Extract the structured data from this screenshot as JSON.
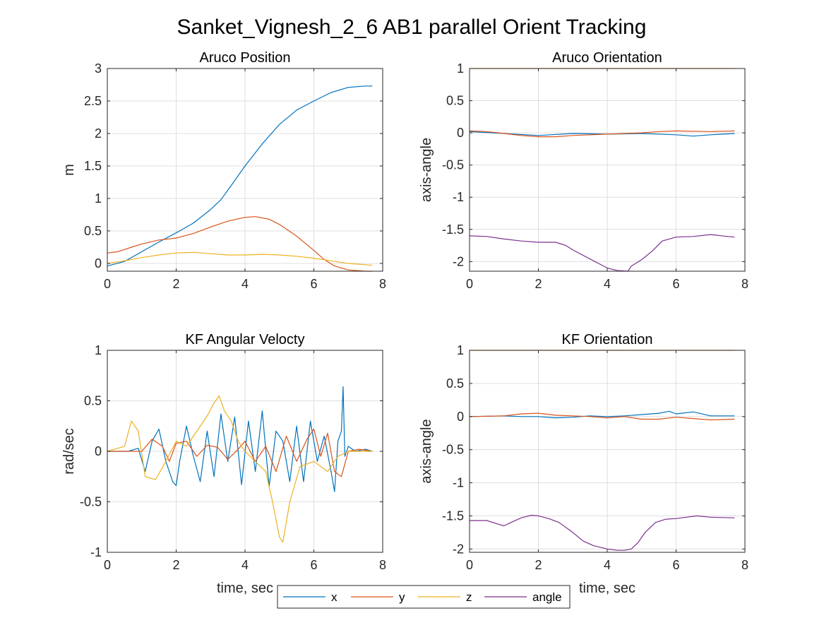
{
  "title": "Sanket_Vignesh_2_6 AB1 parallel Orient Tracking",
  "colors": {
    "x": "#0072bd",
    "y": "#d95319",
    "z": "#edb120",
    "angle": "#7e2f8e"
  },
  "legend": {
    "placement": "bottom-center",
    "entries": [
      "x",
      "y",
      "z",
      "angle"
    ]
  },
  "chart_data": [
    {
      "type": "line",
      "title": "Aruco Position",
      "xlabel": "",
      "ylabel": "m",
      "xlim": [
        0,
        8
      ],
      "ylim": [
        -0.12,
        3
      ],
      "xticks": [
        0,
        2,
        4,
        6,
        8
      ],
      "yticks": [
        0,
        0.5,
        1,
        1.5,
        2,
        2.5,
        3
      ],
      "grid": true,
      "series": [
        {
          "name": "x",
          "color": "#0072bd",
          "x": [
            0,
            0.5,
            1,
            1.5,
            2,
            2.5,
            3,
            3.3,
            3.6,
            4,
            4.5,
            5,
            5.5,
            6,
            6.5,
            7,
            7.5,
            7.7
          ],
          "y": [
            -0.04,
            0.03,
            0.18,
            0.33,
            0.47,
            0.62,
            0.83,
            0.98,
            1.2,
            1.5,
            1.84,
            2.14,
            2.36,
            2.5,
            2.63,
            2.71,
            2.73,
            2.73
          ]
        },
        {
          "name": "y",
          "color": "#d95319",
          "x": [
            0,
            0.3,
            0.7,
            1,
            1.5,
            2,
            2.5,
            3,
            3.5,
            4,
            4.3,
            4.7,
            5,
            5.5,
            6,
            6.3,
            6.6,
            7,
            7.5,
            7.7
          ],
          "y": [
            0.16,
            0.18,
            0.25,
            0.3,
            0.36,
            0.39,
            0.46,
            0.56,
            0.65,
            0.71,
            0.72,
            0.68,
            0.6,
            0.42,
            0.2,
            0.06,
            -0.04,
            -0.1,
            -0.12,
            -0.12
          ]
        },
        {
          "name": "z",
          "color": "#edb120",
          "x": [
            0,
            0.5,
            1,
            1.5,
            2,
            2.5,
            3,
            3.5,
            4,
            4.5,
            5,
            5.5,
            6,
            6.5,
            7,
            7.5,
            7.7
          ],
          "y": [
            0.0,
            0.04,
            0.09,
            0.13,
            0.16,
            0.17,
            0.15,
            0.13,
            0.13,
            0.14,
            0.13,
            0.11,
            0.08,
            0.04,
            0.0,
            -0.02,
            -0.03
          ]
        }
      ]
    },
    {
      "type": "line",
      "title": "Aruco Orientation",
      "xlabel": "",
      "ylabel": "axis-angle",
      "xlim": [
        0,
        8
      ],
      "ylim": [
        -2.15,
        1
      ],
      "xticks": [
        0,
        2,
        4,
        6,
        8
      ],
      "yticks": [
        -2,
        -1.5,
        -1,
        -0.5,
        0,
        0.5,
        1
      ],
      "grid": true,
      "series": [
        {
          "name": "x",
          "color": "#0072bd",
          "x": [
            0,
            1,
            2,
            3,
            4,
            5,
            6,
            6.5,
            7,
            7.7
          ],
          "y": [
            0.02,
            -0.01,
            -0.04,
            -0.01,
            -0.02,
            -0.01,
            -0.03,
            -0.05,
            -0.03,
            -0.01
          ]
        },
        {
          "name": "y",
          "color": "#d95319",
          "x": [
            0,
            0.5,
            1,
            1.5,
            2,
            2.5,
            3,
            4,
            5,
            5.5,
            6,
            7,
            7.7
          ],
          "y": [
            0.03,
            0.02,
            -0.01,
            -0.04,
            -0.06,
            -0.06,
            -0.04,
            -0.02,
            0.0,
            0.02,
            0.03,
            0.02,
            0.03
          ]
        },
        {
          "name": "z",
          "color": "#edb120",
          "x": [
            0,
            7.7
          ],
          "y": [
            1.0,
            1.0
          ]
        },
        {
          "name": "angle",
          "color": "#7e2f8e",
          "x": [
            0,
            0.5,
            1,
            1.5,
            2,
            2.5,
            2.8,
            3,
            3.5,
            4,
            4.3,
            4.6,
            4.7,
            5,
            5.3,
            5.6,
            6,
            6.5,
            7,
            7.5,
            7.7
          ],
          "y": [
            -1.6,
            -1.61,
            -1.65,
            -1.68,
            -1.7,
            -1.7,
            -1.75,
            -1.82,
            -1.96,
            -2.1,
            -2.14,
            -2.15,
            -2.07,
            -1.97,
            -1.84,
            -1.68,
            -1.62,
            -1.61,
            -1.58,
            -1.61,
            -1.62
          ]
        }
      ]
    },
    {
      "type": "line",
      "title": "KF Angular Velocty",
      "xlabel": "time, sec",
      "ylabel": "rad/sec",
      "xlim": [
        0,
        8
      ],
      "ylim": [
        -1,
        1
      ],
      "xticks": [
        0,
        2,
        4,
        6,
        8
      ],
      "yticks": [
        -1,
        -0.5,
        0,
        0.5,
        1
      ],
      "grid": true,
      "series": [
        {
          "name": "x",
          "color": "#0072bd",
          "x": [
            0,
            0.6,
            0.9,
            1.1,
            1.3,
            1.5,
            1.7,
            1.9,
            2.0,
            2.1,
            2.3,
            2.5,
            2.7,
            2.9,
            3.1,
            3.3,
            3.5,
            3.7,
            3.9,
            4.1,
            4.3,
            4.5,
            4.7,
            4.9,
            5.1,
            5.3,
            5.5,
            5.7,
            5.9,
            6.1,
            6.3,
            6.5,
            6.6,
            6.7,
            6.8,
            6.85,
            6.9,
            7.0,
            7.2,
            7.5,
            7.7
          ],
          "y": [
            0.0,
            0.0,
            0.03,
            -0.2,
            0.1,
            0.22,
            -0.1,
            -0.3,
            -0.34,
            -0.1,
            0.25,
            -0.05,
            -0.3,
            0.2,
            -0.25,
            0.37,
            -0.1,
            0.34,
            -0.33,
            0.3,
            -0.2,
            0.4,
            -0.35,
            0.2,
            0.1,
            -0.3,
            0.25,
            -0.3,
            0.3,
            -0.1,
            0.15,
            -0.2,
            -0.4,
            0.1,
            0.2,
            0.64,
            -0.05,
            0.05,
            0.0,
            0.02,
            0.0
          ]
        },
        {
          "name": "y",
          "color": "#d95319",
          "x": [
            0,
            1,
            1.3,
            1.6,
            1.8,
            2.0,
            2.3,
            2.6,
            2.9,
            3.2,
            3.5,
            3.8,
            4.0,
            4.3,
            4.6,
            4.9,
            5.2,
            5.5,
            5.8,
            6.0,
            6.2,
            6.4,
            6.6,
            6.8,
            7.0,
            7.3,
            7.7
          ],
          "y": [
            0.0,
            0.0,
            0.12,
            0.05,
            -0.1,
            0.08,
            0.1,
            -0.05,
            0.06,
            0.04,
            -0.08,
            0.02,
            0.1,
            -0.1,
            0.05,
            -0.2,
            0.15,
            -0.1,
            0.12,
            0.22,
            -0.05,
            0.18,
            -0.2,
            -0.25,
            0.0,
            0.02,
            0.0
          ]
        },
        {
          "name": "z",
          "color": "#edb120",
          "x": [
            0,
            0.5,
            0.7,
            0.9,
            1.1,
            1.4,
            1.7,
            2.0,
            2.3,
            2.6,
            2.9,
            3.1,
            3.25,
            3.4,
            3.6,
            3.8,
            4.0,
            4.3,
            4.6,
            4.8,
            5.0,
            5.1,
            5.3,
            5.6,
            6.0,
            6.4,
            6.7,
            7.0,
            7.7
          ],
          "y": [
            0.0,
            0.05,
            0.3,
            0.2,
            -0.25,
            -0.28,
            -0.1,
            0.1,
            0.05,
            0.2,
            0.35,
            0.48,
            0.55,
            0.4,
            0.3,
            0.1,
            0.0,
            -0.1,
            -0.2,
            -0.5,
            -0.85,
            -0.9,
            -0.5,
            -0.15,
            -0.1,
            -0.2,
            -0.05,
            0.0,
            0.0
          ]
        }
      ]
    },
    {
      "type": "line",
      "title": "KF Orientation",
      "xlabel": "time, sec",
      "ylabel": "axis-angle",
      "xlim": [
        0,
        8
      ],
      "ylim": [
        -2.05,
        1
      ],
      "xticks": [
        0,
        2,
        4,
        6,
        8
      ],
      "yticks": [
        -2,
        -1.5,
        -1,
        -0.5,
        0,
        0.5,
        1
      ],
      "grid": true,
      "series": [
        {
          "name": "x",
          "color": "#0072bd",
          "x": [
            0,
            1,
            1.5,
            2,
            2.5,
            3,
            3.5,
            4,
            4.5,
            5,
            5.5,
            5.8,
            6,
            6.5,
            7,
            7.7
          ],
          "y": [
            0.0,
            0.01,
            0.0,
            0.0,
            -0.02,
            -0.01,
            0.01,
            0.0,
            0.01,
            0.03,
            0.05,
            0.08,
            0.04,
            0.07,
            0.01,
            0.01
          ]
        },
        {
          "name": "y",
          "color": "#d95319",
          "x": [
            0,
            1,
            1.5,
            2,
            2.5,
            3,
            3.5,
            4,
            4.5,
            5,
            5.5,
            6,
            6.5,
            7,
            7.7
          ],
          "y": [
            0.0,
            0.01,
            0.04,
            0.05,
            0.02,
            0.01,
            0.0,
            -0.02,
            0.0,
            -0.04,
            -0.04,
            -0.01,
            -0.03,
            -0.05,
            -0.04
          ]
        },
        {
          "name": "z",
          "color": "#edb120",
          "x": [
            0,
            7.7
          ],
          "y": [
            1.0,
            1.0
          ]
        },
        {
          "name": "angle",
          "color": "#7e2f8e",
          "x": [
            0,
            0.5,
            0.8,
            1.0,
            1.2,
            1.5,
            1.8,
            2.0,
            2.3,
            2.6,
            3.0,
            3.3,
            3.6,
            4.0,
            4.3,
            4.5,
            4.7,
            4.9,
            5.1,
            5.4,
            5.7,
            6.0,
            6.3,
            6.6,
            7.0,
            7.7
          ],
          "y": [
            -1.57,
            -1.57,
            -1.62,
            -1.65,
            -1.6,
            -1.53,
            -1.49,
            -1.5,
            -1.54,
            -1.6,
            -1.75,
            -1.88,
            -1.95,
            -2.0,
            -2.02,
            -2.02,
            -2.0,
            -1.9,
            -1.75,
            -1.6,
            -1.55,
            -1.54,
            -1.52,
            -1.5,
            -1.52,
            -1.53
          ]
        }
      ]
    }
  ]
}
